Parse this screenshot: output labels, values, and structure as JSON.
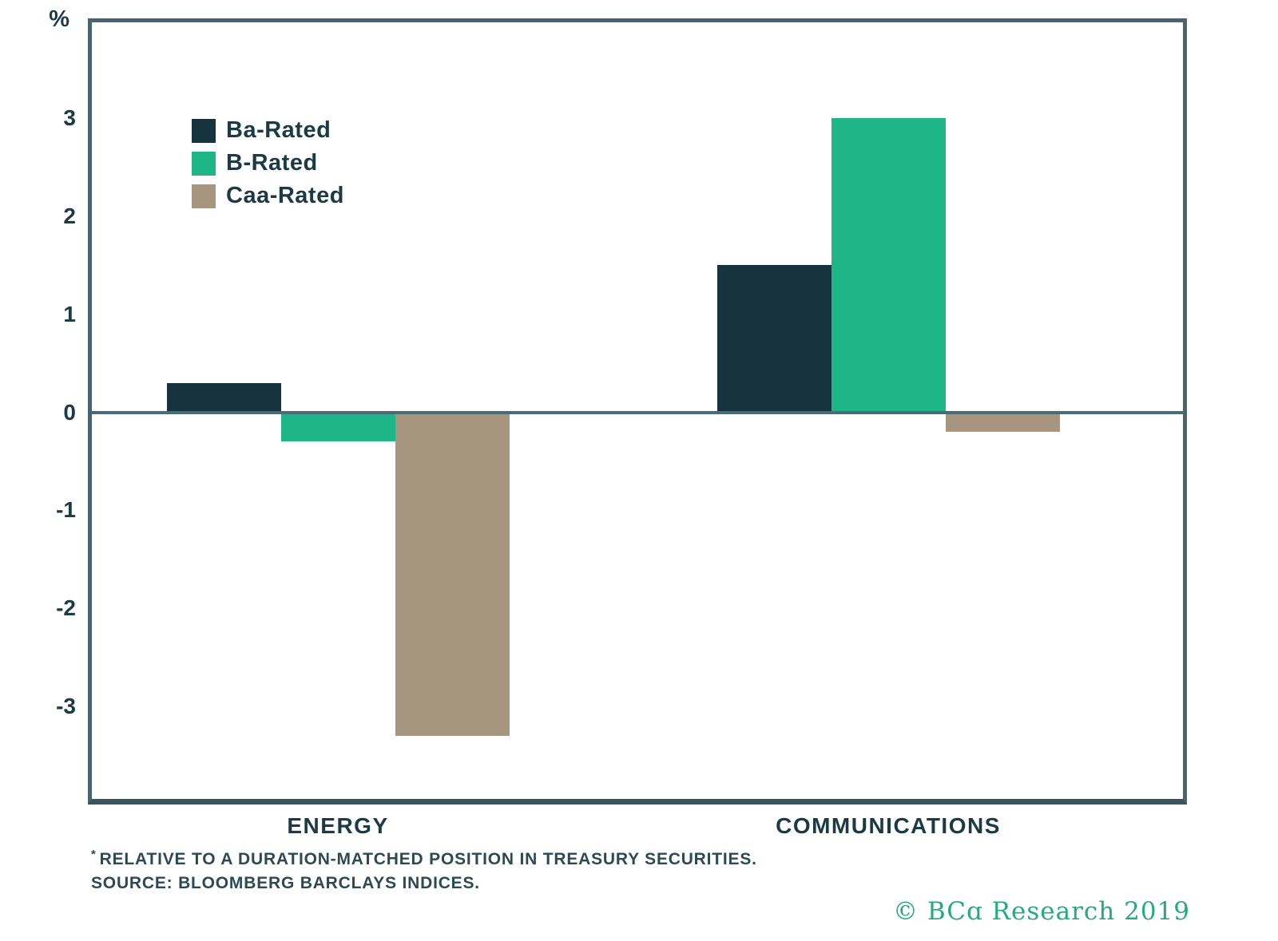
{
  "chart_data": {
    "type": "bar",
    "categories": [
      "ENERGY",
      "COMMUNICATIONS"
    ],
    "series": [
      {
        "name": "Ba-Rated",
        "color": "#16333e",
        "values": [
          0.3,
          1.5
        ]
      },
      {
        "name": "B-Rated",
        "color": "#1fb687",
        "values": [
          -0.3,
          3.0
        ]
      },
      {
        "name": "Caa-Rated",
        "color": "#a6957f",
        "values": [
          -3.3,
          -0.2
        ]
      }
    ],
    "title": "",
    "xlabel": "",
    "ylabel": "%",
    "ylim": [
      -4,
      4
    ],
    "yticks": [
      3,
      2,
      1,
      0,
      -1,
      -2,
      -3
    ],
    "grid": false,
    "legend_position": "upper-left-inside",
    "baseline": 0
  },
  "axis": {
    "unit_label": "%"
  },
  "footnotes": {
    "note_marker": "*",
    "note_text": "RELATIVE TO A DURATION-MATCHED POSITION IN TREASURY SECURITIES.",
    "source_text": "SOURCE: BLOOMBERG BARCLAYS INDICES."
  },
  "branding": {
    "copyright": "© BCɑ Research 2019",
    "color": "#27a97e"
  },
  "colors": {
    "frame": "#47646f",
    "zero_line": "#4a6a74",
    "text": "#1b3a45",
    "footnote_text": "#2d4a53"
  }
}
